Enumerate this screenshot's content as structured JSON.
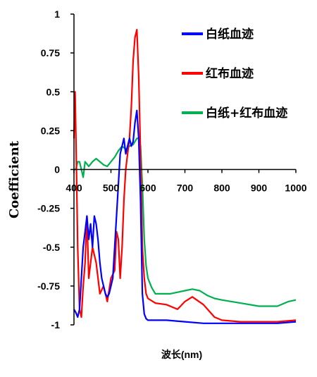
{
  "chart_data": {
    "type": "line",
    "xlabel": "波长(nm)",
    "ylabel": "Coefficient",
    "xlim": [
      400,
      1000
    ],
    "ylim": [
      -1,
      1
    ],
    "x_ticks": [
      "400",
      "500",
      "600",
      "700",
      "800",
      "900",
      "1000"
    ],
    "y_ticks": [
      "1",
      "0.75",
      "0.5",
      "0.25",
      "0",
      "-0.25",
      "-0.5",
      "-0.75",
      "-1"
    ],
    "grid": false,
    "legend_position": "top-right",
    "series": [
      {
        "name": "白纸血迹",
        "color": "#0000ff",
        "x": [
          400,
          405,
          410,
          415,
          420,
          425,
          430,
          435,
          440,
          445,
          450,
          455,
          460,
          465,
          470,
          475,
          480,
          485,
          490,
          495,
          500,
          505,
          510,
          515,
          520,
          525,
          530,
          535,
          540,
          545,
          550,
          555,
          560,
          565,
          570,
          575,
          580,
          585,
          590,
          595,
          600,
          610,
          620,
          650,
          700,
          750,
          800,
          850,
          900,
          950,
          1000
        ],
        "y": [
          -0.9,
          -0.92,
          -0.95,
          -0.9,
          -0.7,
          -0.5,
          -0.4,
          -0.3,
          -0.45,
          -0.35,
          -0.5,
          -0.3,
          -0.35,
          -0.45,
          -0.6,
          -0.7,
          -0.75,
          -0.8,
          -0.82,
          -0.8,
          -0.75,
          -0.7,
          -0.5,
          -0.3,
          -0.1,
          0.1,
          0.15,
          0.2,
          0.1,
          0.15,
          0.2,
          0.15,
          0.18,
          0.3,
          0.38,
          0.2,
          -0.2,
          -0.8,
          -0.93,
          -0.96,
          -0.97,
          -0.97,
          -0.97,
          -0.97,
          -0.98,
          -0.99,
          -0.99,
          -0.99,
          -0.99,
          -0.99,
          -0.98
        ]
      },
      {
        "name": "红布血迹",
        "color": "#ff0000",
        "x": [
          400,
          403,
          406,
          410,
          415,
          420,
          425,
          430,
          435,
          440,
          450,
          460,
          470,
          480,
          490,
          500,
          510,
          515,
          520,
          525,
          530,
          535,
          540,
          545,
          550,
          555,
          560,
          565,
          570,
          575,
          580,
          585,
          590,
          595,
          600,
          620,
          650,
          680,
          700,
          720,
          750,
          780,
          800,
          850,
          900,
          950,
          1000
        ],
        "y": [
          0.2,
          0.5,
          0.1,
          -0.5,
          -0.9,
          -0.95,
          -0.75,
          -0.6,
          -0.3,
          -0.7,
          -0.5,
          -0.6,
          -0.8,
          -0.75,
          -0.85,
          -0.7,
          -0.65,
          -0.4,
          -0.45,
          -0.7,
          -0.5,
          -0.2,
          0.0,
          0.1,
          0.2,
          0.4,
          0.7,
          0.85,
          0.9,
          0.6,
          0.1,
          -0.5,
          -0.7,
          -0.8,
          -0.83,
          -0.86,
          -0.87,
          -0.9,
          -0.85,
          -0.82,
          -0.87,
          -0.95,
          -0.97,
          -0.98,
          -0.98,
          -0.98,
          -0.97
        ]
      },
      {
        "name": "白纸+红布血迹",
        "color": "#00b050",
        "x": [
          400,
          405,
          410,
          415,
          420,
          425,
          430,
          440,
          450,
          460,
          470,
          480,
          490,
          500,
          510,
          520,
          530,
          540,
          550,
          560,
          565,
          570,
          575,
          580,
          585,
          590,
          595,
          600,
          610,
          620,
          640,
          660,
          680,
          700,
          720,
          740,
          760,
          780,
          800,
          850,
          900,
          950,
          980,
          1000
        ],
        "y": [
          0.0,
          0.0,
          0.05,
          0.05,
          0.0,
          -0.05,
          0.05,
          0.02,
          0.05,
          0.07,
          0.05,
          0.03,
          0.02,
          0.05,
          0.08,
          0.12,
          0.15,
          0.13,
          0.15,
          0.16,
          0.18,
          0.2,
          0.2,
          0.15,
          -0.1,
          -0.45,
          -0.62,
          -0.7,
          -0.76,
          -0.8,
          -0.8,
          -0.8,
          -0.79,
          -0.78,
          -0.77,
          -0.78,
          -0.81,
          -0.83,
          -0.84,
          -0.86,
          -0.88,
          -0.88,
          -0.85,
          -0.84
        ]
      }
    ]
  }
}
